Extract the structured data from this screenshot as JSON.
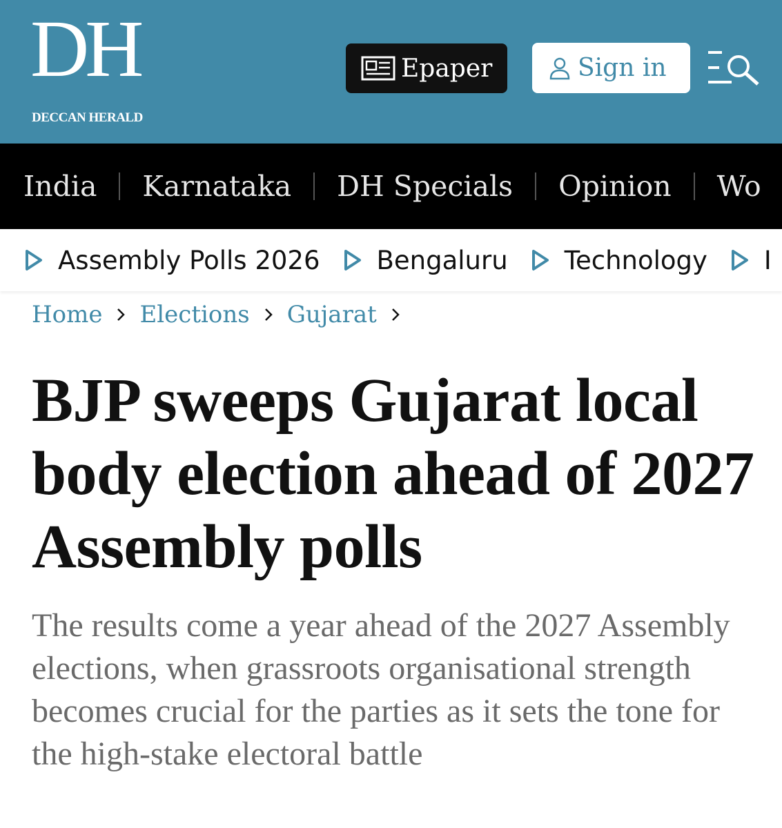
{
  "header": {
    "logo": "DH",
    "logo_sub": "DECCAN HERALD",
    "epaper": "Epaper",
    "sign_in": "Sign in"
  },
  "nav": {
    "items": [
      "India",
      "Karnataka",
      "DH Specials",
      "Opinion",
      "Wo"
    ]
  },
  "subnav": {
    "items": [
      "Assembly Polls 2026",
      "Bengaluru",
      "Technology",
      "I"
    ]
  },
  "breadcrumb": {
    "items": [
      "Home",
      "Elections",
      "Gujarat"
    ]
  },
  "article": {
    "headline": "BJP sweeps Gujarat local body election ahead of 2027 Assembly polls",
    "summary": "The results come a year ahead of the 2027 Assembly elections, when grassroots organisational strength becomes crucial for the parties as it sets the tone for the high-stake electoral battle"
  }
}
